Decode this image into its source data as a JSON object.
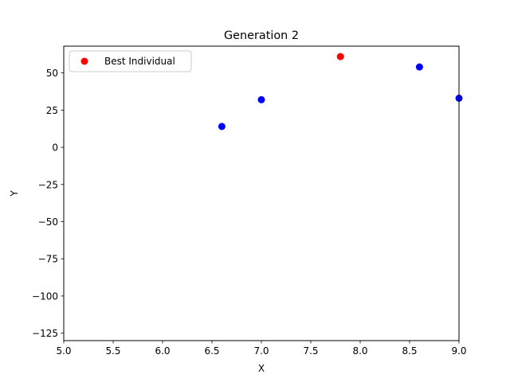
{
  "chart_data": {
    "type": "scatter",
    "title": "Generation 2",
    "xlabel": "X",
    "ylabel": "Y",
    "xlim": [
      5.0,
      9.0
    ],
    "ylim": [
      -130,
      68
    ],
    "xticks": [
      5.0,
      5.5,
      6.0,
      6.5,
      7.0,
      7.5,
      8.0,
      8.5,
      9.0
    ],
    "xtick_labels": [
      "5.0",
      "5.5",
      "6.0",
      "6.5",
      "7.0",
      "7.5",
      "8.0",
      "8.5",
      "9.0"
    ],
    "yticks": [
      50,
      25,
      0,
      -25,
      -50,
      -75,
      -100,
      -125
    ],
    "ytick_labels": [
      "50",
      "25",
      "0",
      "−25",
      "−50",
      "−75",
      "−100",
      "−125"
    ],
    "grid": false,
    "legend_position": "top-left",
    "series": [
      {
        "color": "#0000ff",
        "points": [
          {
            "x": 6.6,
            "y": 14
          },
          {
            "x": 7.0,
            "y": 32
          },
          {
            "x": 8.6,
            "y": 54
          },
          {
            "x": 9.0,
            "y": 33
          }
        ]
      },
      {
        "name": "Best Individual",
        "color": "#ff0000",
        "points": [
          {
            "x": 7.8,
            "y": 61
          }
        ]
      }
    ]
  }
}
